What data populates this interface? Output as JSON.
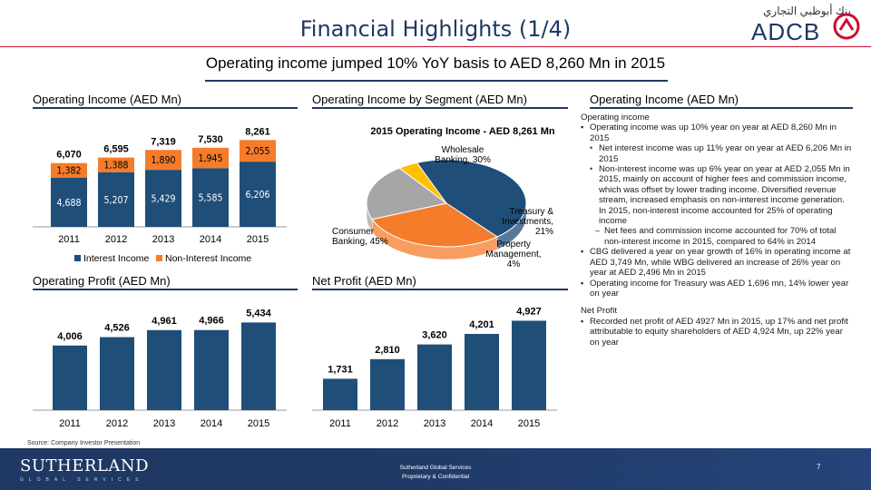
{
  "header": {
    "title": "Financial Highlights (1/4)",
    "subtitle": "Operating income jumped 10% YoY basis to AED 8,260 Mn in 2015",
    "logo_arabic": "بنك أبوظبي التجاري",
    "logo_text": "ADCB"
  },
  "sections": {
    "op_income_title": "Operating Income (AED Mn)",
    "segment_title": "Operating Income by Segment (AED Mn)",
    "commentary_title": "Operating Income (AED Mn)",
    "op_profit_title": "Operating Profit (AED Mn)",
    "net_profit_title": "Net Profit (AED Mn)"
  },
  "chart_data": [
    {
      "type": "bar",
      "stacked": true,
      "categories": [
        "2011",
        "2012",
        "2013",
        "2014",
        "2015"
      ],
      "series": [
        {
          "name": "Interest Income",
          "values": [
            4688,
            5207,
            5429,
            5585,
            6206
          ],
          "labels": [
            "4,688",
            "5,207",
            "5,429",
            "5,585",
            "6,206"
          ],
          "color": "#1f4e79"
        },
        {
          "name": "Non-Interest Income",
          "values": [
            1382,
            1388,
            1890,
            1945,
            2055
          ],
          "labels": [
            "1,382",
            "1,388",
            "1,890",
            "1,945",
            "2,055"
          ],
          "color": "#f47c2a"
        }
      ],
      "totals": [
        "6,070",
        "6,595",
        "7,319",
        "7,530",
        "8,261"
      ],
      "total_values": [
        6070,
        6595,
        7319,
        7530,
        8261
      ],
      "ylim": [
        0,
        9500
      ],
      "legend": "bottom"
    },
    {
      "type": "pie",
      "title": "2015 Operating Income - AED 8,261 Mn",
      "slices": [
        {
          "label": "Consumer Banking, 45%",
          "value": 45,
          "color": "#1f4e79"
        },
        {
          "label": "Wholesale Banking, 30%",
          "value": 30,
          "color": "#f47c2a"
        },
        {
          "label": "Treasury & Investments, 21%",
          "value": 21,
          "color": "#a6a6a6"
        },
        {
          "label": "Property Management, 4%",
          "value": 4,
          "color": "#ffc000"
        }
      ]
    },
    {
      "type": "bar",
      "categories": [
        "2011",
        "2012",
        "2013",
        "2014",
        "2015"
      ],
      "values": [
        4006,
        4526,
        4961,
        4966,
        5434
      ],
      "labels": [
        "4,006",
        "4,526",
        "4,961",
        "4,966",
        "5,434"
      ],
      "color": "#1f4e79",
      "ylim": [
        0,
        6300
      ]
    },
    {
      "type": "bar",
      "categories": [
        "2011",
        "2012",
        "2013",
        "2014",
        "2015"
      ],
      "values": [
        1731,
        2810,
        3620,
        4201,
        4927
      ],
      "labels": [
        "1,731",
        "2,810",
        "3,620",
        "4,201",
        "4,927"
      ],
      "color": "#1f4e79",
      "ylim": [
        0,
        5600
      ]
    }
  ],
  "commentary": {
    "op_head": "Operating income",
    "op_b1": "Operating income was up 10% year on year at AED 8,260 Mn in 2015",
    "op_s1": "Net interest income was up 11% year on year at AED 6,206 Mn in 2015",
    "op_s2": "Non-interest income was up 6% year on year at AED 2,055 Mn in 2015, mainly on account of higher fees and commission income, which was offset by lower trading income. Diversified revenue stream, increased emphasis on non-interest income generation. In 2015, non-interest income accounted for 25% of operating income",
    "op_s3": "Net fees and commission income accounted for 70% of total non-interest income in 2015, compared to 64% in 2014",
    "op_b2": "CBG delivered a year on year growth of 16% in operating income at AED 3,749 Mn, while WBG delivered an increase of 26% year on year at AED 2,496 Mn in 2015",
    "op_b3": "Operating income for Treasury was AED 1,696 mn, 14% lower year on year",
    "np_head": "Net Profit",
    "np_b1": "Recorded net profit of AED 4927 Mn in 2015, up 17% and net profit attributable to equity shareholders of AED 4,924 Mn, up 22% year on year"
  },
  "footer": {
    "source": "Source: Company Investor Presentation",
    "logo": "SUTHERLAND",
    "logo_sub": "GLOBAL SERVICES",
    "center_line1": "Sutherland Global Services",
    "center_line2": "Proprietary & Confidential",
    "page": "7"
  },
  "colors": {
    "navy": "#1f3864",
    "accent_red": "#c8102e"
  }
}
